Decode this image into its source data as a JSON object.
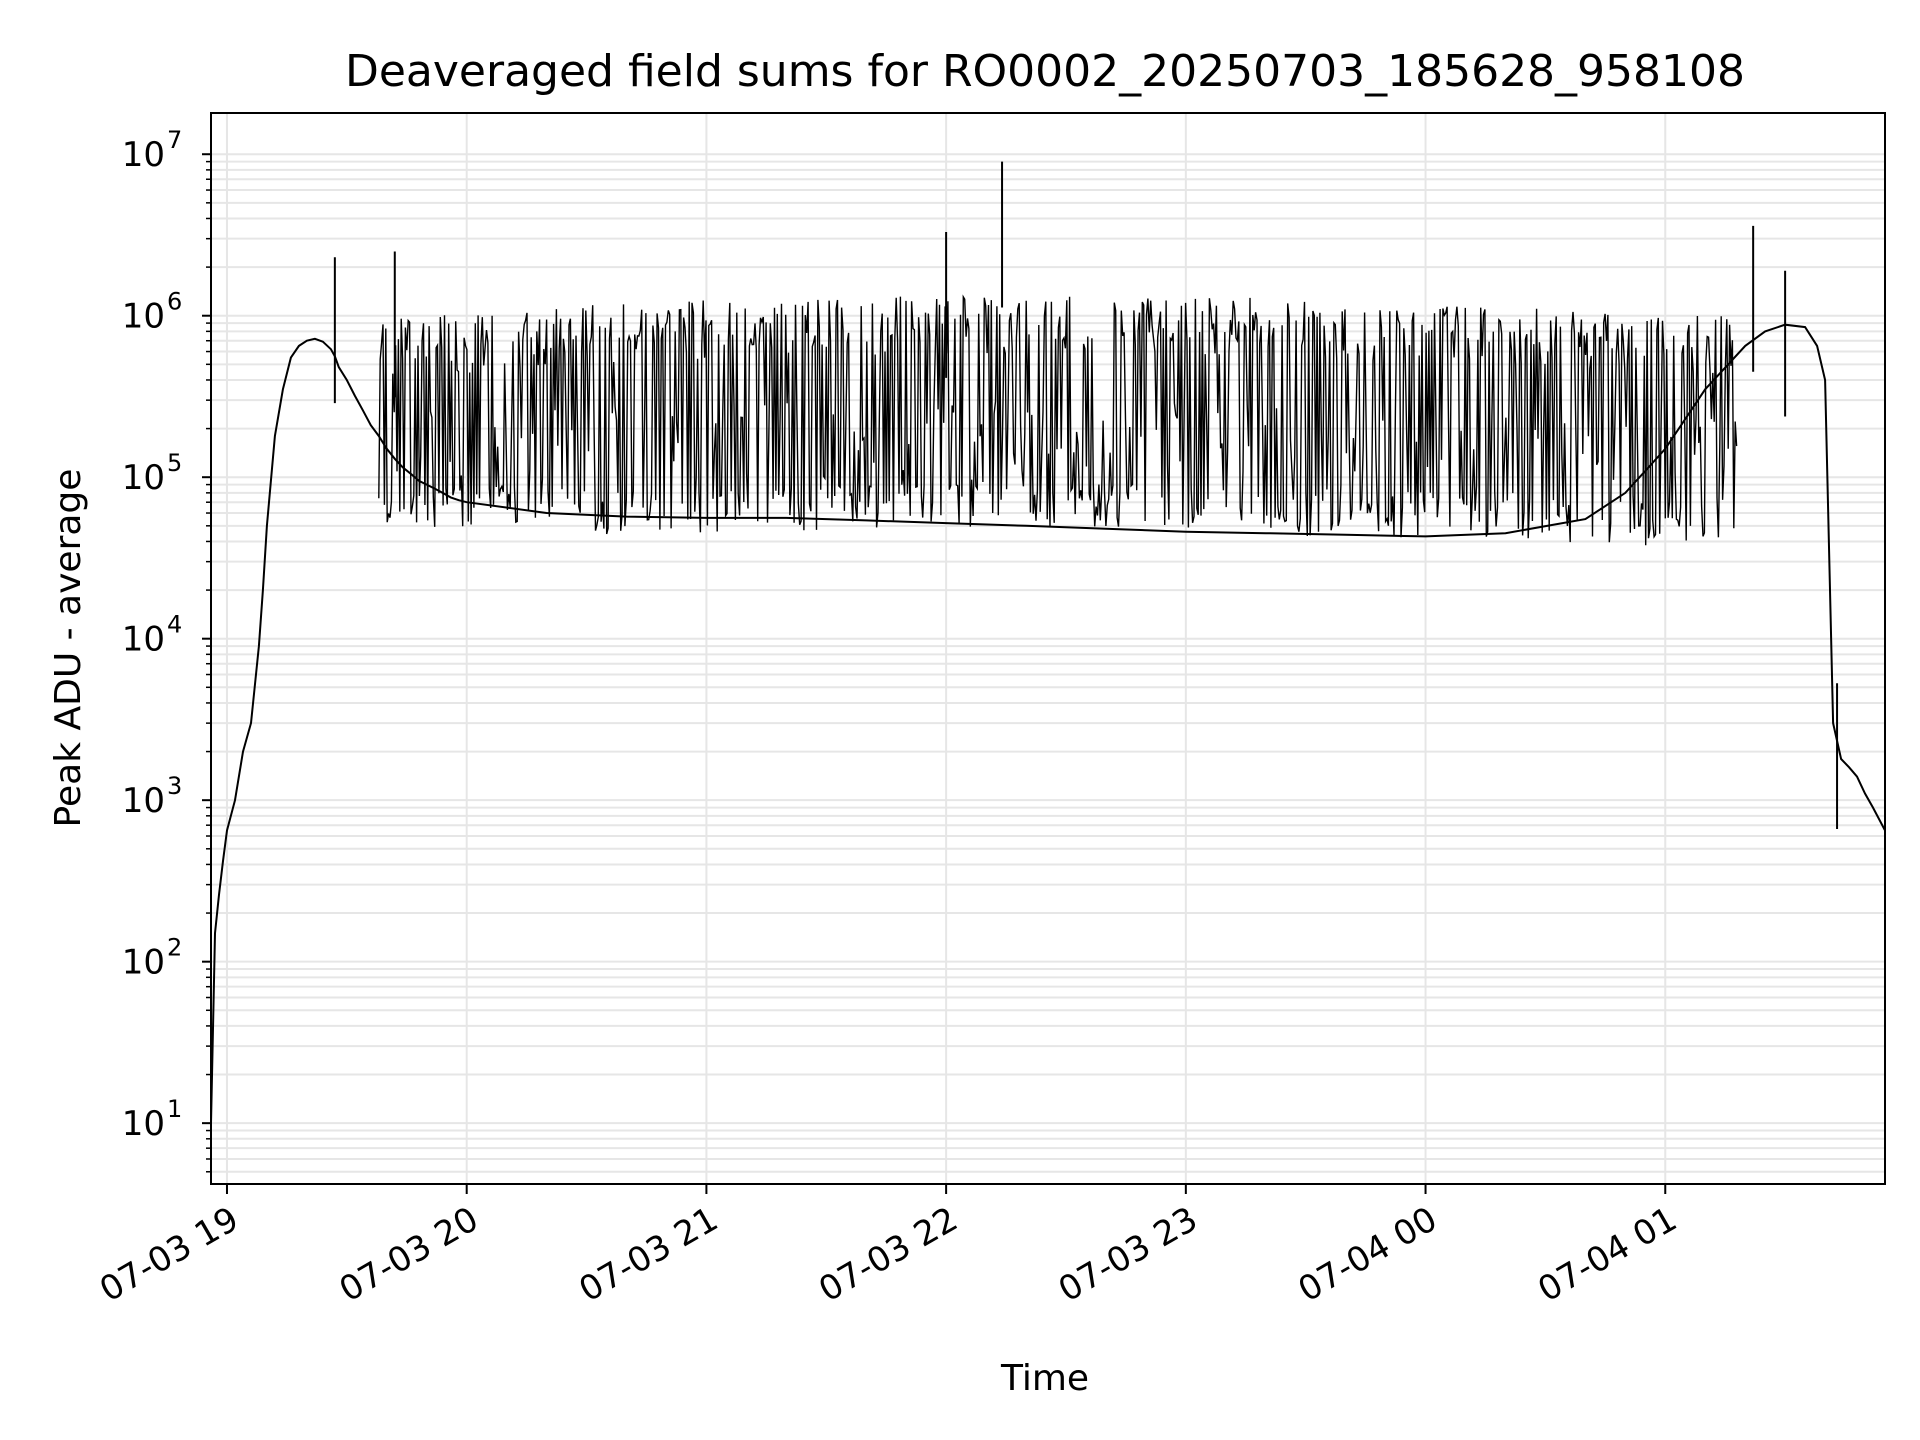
{
  "chart_data": {
    "type": "line",
    "title": "Deaveraged field sums for RO0002_20250703_185628_958108",
    "xlabel": "Time",
    "ylabel": "Peak ADU - average",
    "yscale": "log",
    "ylim": [
      4.2,
      18000000
    ],
    "xlim": [
      "07-03 18:56",
      "07-04 01:55"
    ],
    "grid": true,
    "x_ticks": [
      "07-03 19",
      "07-03 20",
      "07-03 21",
      "07-03 22",
      "07-03 23",
      "07-04 00",
      "07-04 01"
    ],
    "y_ticks": [
      {
        "base": "10",
        "exp": "1"
      },
      {
        "base": "10",
        "exp": "2"
      },
      {
        "base": "10",
        "exp": "3"
      },
      {
        "base": "10",
        "exp": "4"
      },
      {
        "base": "10",
        "exp": "5"
      },
      {
        "base": "10",
        "exp": "6"
      },
      {
        "base": "10",
        "exp": "7"
      }
    ],
    "series": [
      {
        "color": "#000000",
        "x": [
          "07-03 18:56",
          "07-03 18:57",
          "07-03 18:58",
          "07-03 18:59",
          "07-03 19:00",
          "07-03 19:02",
          "07-03 19:04",
          "07-03 19:06",
          "07-03 19:08",
          "07-03 19:09",
          "07-03 19:10",
          "07-03 19:12",
          "07-03 19:14",
          "07-03 19:16",
          "07-03 19:18",
          "07-03 19:20",
          "07-03 19:22",
          "07-03 19:24",
          "07-03 19:26",
          "07-03 19:27",
          "07-03 19:28",
          "07-03 19:30",
          "07-03 19:32",
          "07-03 19:34",
          "07-03 19:36",
          "07-03 19:38",
          "07-03 19:40",
          "07-03 19:42",
          "07-03 19:44",
          "07-03 19:46",
          "07-03 19:48",
          "07-03 19:50",
          "07-03 19:52",
          "07-03 19:54",
          "07-03 19:56",
          "07-03 19:58",
          "07-03 20:00",
          "07-03 20:20",
          "07-03 20:40",
          "07-03 21:00",
          "07-03 21:20",
          "07-03 21:40",
          "07-03 22:00",
          "07-03 22:20",
          "07-03 22:40",
          "07-03 23:00",
          "07-03 23:20",
          "07-03 23:40",
          "07-04 00:00",
          "07-04 00:20",
          "07-04 00:40",
          "07-04 00:50",
          "07-04 01:00",
          "07-04 01:10",
          "07-04 01:20",
          "07-04 01:25",
          "07-04 01:30",
          "07-04 01:35",
          "07-04 01:38",
          "07-04 01:40",
          "07-04 01:42",
          "07-04 01:44",
          "07-04 01:46",
          "07-04 01:48",
          "07-04 01:50",
          "07-04 01:52",
          "07-04 01:55"
        ],
        "y": [
          10,
          150,
          260,
          420,
          650,
          1000,
          2000,
          3000,
          9000,
          20000,
          50000,
          180000,
          350000,
          550000,
          650000,
          700000,
          720000,
          690000,
          620000,
          560000,
          480000,
          400000,
          320000,
          260000,
          210000,
          180000,
          150000,
          130000,
          115000,
          105000,
          95000,
          90000,
          85000,
          80000,
          75000,
          72000,
          70000,
          60000,
          57000,
          56000,
          56000,
          54000,
          52000,
          50000,
          48000,
          46000,
          45000,
          44000,
          43000,
          45000,
          55000,
          80000,
          150000,
          350000,
          650000,
          800000,
          880000,
          850000,
          650000,
          400000,
          3000,
          1800,
          1600,
          1400,
          1100,
          900,
          650
        ]
      }
    ],
    "annotations": [
      {
        "type": "noise-band",
        "from": "07-03 19:38",
        "to": "07-04 01:18",
        "low_envelope": [
          [
            0,
            55000.0
          ],
          [
            60,
            49000.0
          ],
          [
            120,
            53000.0
          ],
          [
            180,
            55000.0
          ],
          [
            240,
            46000.0
          ],
          [
            300,
            43000.0
          ],
          [
            360,
            40000.0
          ],
          [
            420,
            38000.0
          ],
          [
            480,
            40000.0
          ],
          [
            540,
            56000.0
          ],
          [
            600,
            110000.0
          ],
          [
            660,
            200000.0
          ]
        ],
        "high_envelope": [
          [
            0,
            900000.0
          ],
          [
            60,
            1150000.0
          ],
          [
            120,
            1250000.0
          ],
          [
            180,
            1300000.0
          ],
          [
            240,
            1200000.0
          ],
          [
            300,
            1050000.0
          ],
          [
            360,
            900000.0
          ],
          [
            420,
            800000.0
          ],
          [
            480,
            800000.0
          ],
          [
            540,
            950000.0
          ],
          [
            600,
            1000000.0
          ],
          [
            660,
            1050000.0
          ]
        ]
      },
      {
        "type": "spike",
        "x": "07-03 19:27",
        "y": 2300000
      },
      {
        "type": "spike",
        "x": "07-03 19:42",
        "y": 2500000
      },
      {
        "type": "spike",
        "x": "07-03 22:00",
        "y": 3300000
      },
      {
        "type": "spike",
        "x": "07-03 22:14",
        "y": 9000000
      },
      {
        "type": "spike",
        "x": "07-04 01:22",
        "y": 3600000
      },
      {
        "type": "spike",
        "x": "07-04 01:30",
        "y": 1900000
      },
      {
        "type": "spike",
        "x": "07-04 01:43",
        "y": 5300
      }
    ]
  }
}
